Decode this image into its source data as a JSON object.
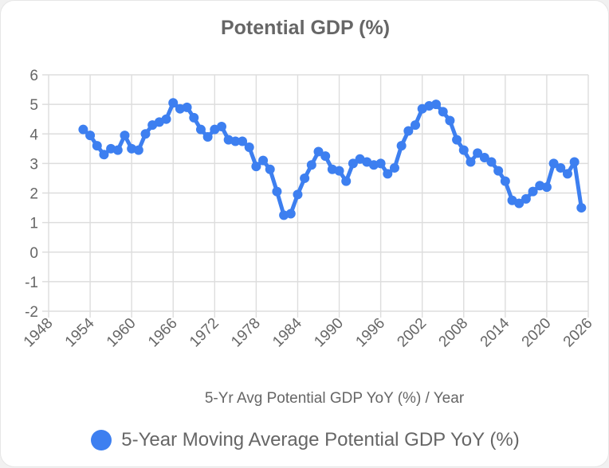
{
  "chart_data": {
    "type": "line",
    "title": "Potential GDP (%)",
    "xlabel": "5-Yr Avg Potential GDP YoY (%) / Year",
    "ylabel": "",
    "xlim": [
      1948,
      2026
    ],
    "ylim": [
      -2,
      6
    ],
    "xticks": [
      1948,
      1954,
      1960,
      1966,
      1972,
      1978,
      1984,
      1990,
      1996,
      2002,
      2008,
      2014,
      2020,
      2026
    ],
    "yticks": [
      -2,
      -1,
      0,
      1,
      2,
      3,
      4,
      5,
      6
    ],
    "grid": true,
    "legend_position": "bottom",
    "series": [
      {
        "name": "5-Year Moving Average Potential GDP YoY (%)",
        "color": "#3d7ff0",
        "x": [
          1953,
          1954,
          1955,
          1956,
          1957,
          1958,
          1959,
          1960,
          1961,
          1962,
          1963,
          1964,
          1965,
          1966,
          1967,
          1968,
          1969,
          1970,
          1971,
          1972,
          1973,
          1974,
          1975,
          1976,
          1977,
          1978,
          1979,
          1980,
          1981,
          1982,
          1983,
          1984,
          1985,
          1986,
          1987,
          1988,
          1989,
          1990,
          1991,
          1992,
          1993,
          1994,
          1995,
          1996,
          1997,
          1998,
          1999,
          2000,
          2001,
          2002,
          2003,
          2004,
          2005,
          2006,
          2007,
          2008,
          2009,
          2010,
          2011,
          2012,
          2013,
          2014,
          2015,
          2016,
          2017,
          2018,
          2019,
          2020,
          2021,
          2022,
          2023,
          2024,
          2025
        ],
        "values": [
          4.15,
          3.95,
          3.6,
          3.3,
          3.5,
          3.45,
          3.95,
          3.5,
          3.45,
          4.0,
          4.3,
          4.4,
          4.5,
          5.05,
          4.85,
          4.9,
          4.55,
          4.15,
          3.9,
          4.15,
          4.25,
          3.8,
          3.75,
          3.75,
          3.55,
          2.9,
          3.1,
          2.8,
          2.05,
          1.25,
          1.3,
          1.95,
          2.5,
          2.95,
          3.4,
          3.25,
          2.8,
          2.75,
          2.4,
          3.0,
          3.15,
          3.05,
          2.95,
          3.0,
          2.65,
          2.85,
          3.6,
          4.1,
          4.3,
          4.85,
          4.95,
          5.0,
          4.75,
          4.45,
          3.8,
          3.45,
          3.05,
          3.35,
          3.2,
          3.05,
          2.75,
          2.4,
          1.75,
          1.65,
          1.8,
          2.05,
          2.25,
          2.2,
          3.0,
          2.85,
          2.65,
          3.05,
          1.5
        ]
      }
    ]
  }
}
